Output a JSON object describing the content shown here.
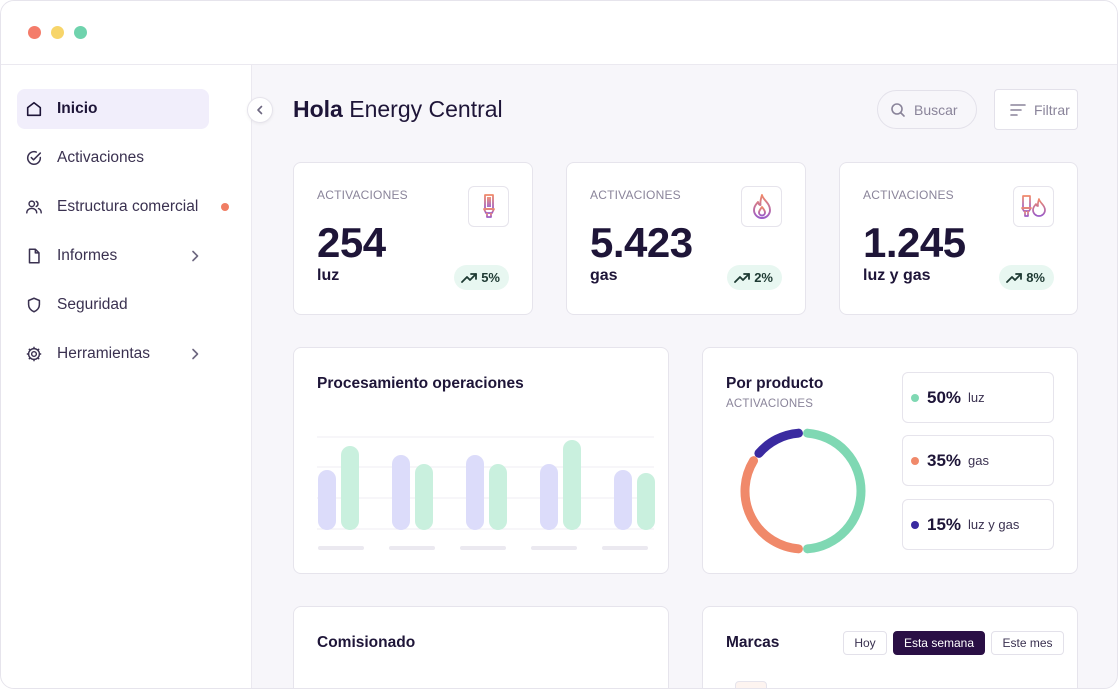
{
  "window": {
    "dots": [
      "#f47c6a",
      "#f7d56a",
      "#6fd3ad"
    ]
  },
  "sidebar": {
    "items": [
      {
        "label": "Inicio",
        "icon": "home-icon",
        "active": true
      },
      {
        "label": "Activaciones",
        "icon": "check-circle-icon"
      },
      {
        "label": "Estructura comercial",
        "icon": "users-icon",
        "notification": true
      },
      {
        "label": "Informes",
        "icon": "file-icon",
        "chevron": true
      },
      {
        "label": "Seguridad",
        "icon": "shield-icon"
      },
      {
        "label": "Herramientas",
        "icon": "gear-icon",
        "chevron": true
      }
    ]
  },
  "header": {
    "greeting": "Hola",
    "name": "Energy Central",
    "search_placeholder": "Buscar",
    "filter_label": "Filtrar"
  },
  "kpis": [
    {
      "caption": "ACTIVACIONES",
      "value": "254",
      "unit": "luz",
      "change": "5%",
      "icon": "lightbulb-icon"
    },
    {
      "caption": "ACTIVACIONES",
      "value": "5.423",
      "unit": "gas",
      "change": "2%",
      "icon": "flame-icon"
    },
    {
      "caption": "ACTIVACIONES",
      "value": "1.245",
      "unit": "luz y gas",
      "change": "8%",
      "icon": "lightbulb-flame-icon"
    }
  ],
  "processing": {
    "title": "Procesamiento operaciones",
    "colors": {
      "a": "#dcdcfa",
      "b": "#c9f0de"
    }
  },
  "by_product": {
    "title": "Por producto",
    "subtitle": "ACTIVACIONES",
    "legend": [
      {
        "pct": "50%",
        "name": "luz",
        "color": "#7fd8b3"
      },
      {
        "pct": "35%",
        "name": "gas",
        "color": "#f0896a"
      },
      {
        "pct": "15%",
        "name": "luz y gas",
        "color": "#3a2aa0"
      }
    ]
  },
  "chart_data": [
    {
      "type": "bar",
      "title": "Procesamiento operaciones",
      "categories": [
        "",
        "",
        "",
        "",
        ""
      ],
      "series": [
        {
          "values": [
            2,
            2.5,
            2.5,
            2.2,
            2
          ]
        },
        {
          "values": [
            2.8,
            2.2,
            2.2,
            3,
            1.9
          ]
        }
      ],
      "ylim": [
        0,
        3.2
      ],
      "grid": true,
      "legend": "none"
    },
    {
      "type": "pie",
      "title": "Por producto",
      "categories": [
        "luz",
        "gas",
        "luz y gas"
      ],
      "values": [
        50,
        35,
        15
      ],
      "legend": "right"
    }
  ],
  "commission": {
    "title": "Comisionado"
  },
  "brands": {
    "title": "Marcas",
    "tabs": [
      {
        "label": "Hoy"
      },
      {
        "label": "Esta semana",
        "active": true
      },
      {
        "label": "Este mes"
      }
    ]
  }
}
